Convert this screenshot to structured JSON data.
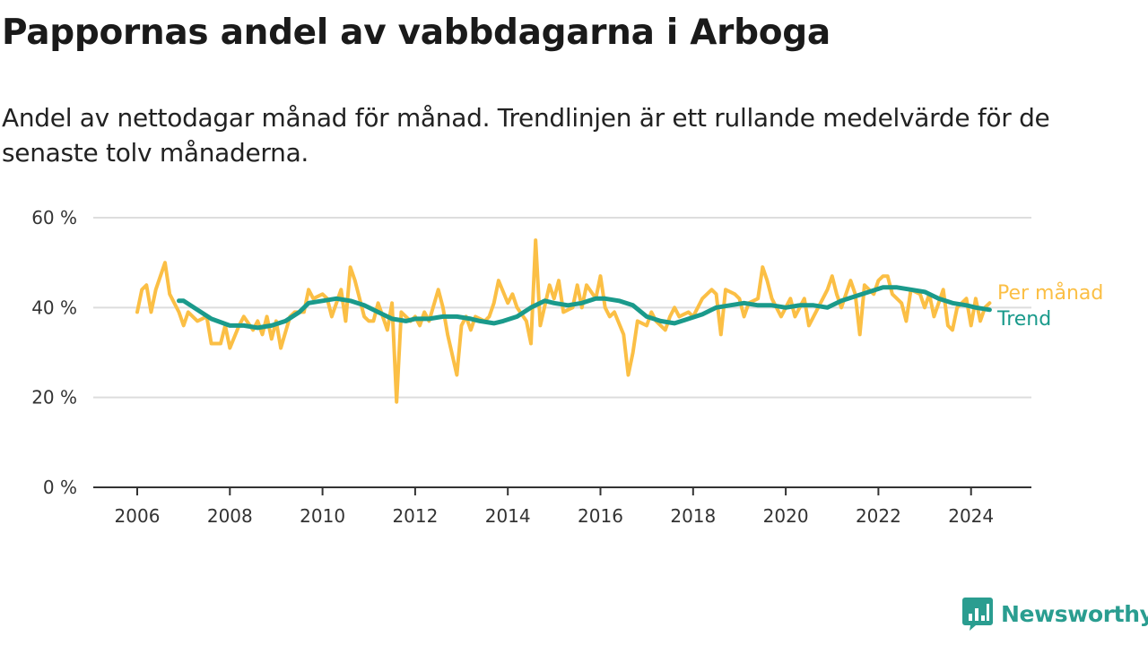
{
  "title": "Pappornas andel av vabbdagarna i Arboga",
  "subtitle": "Andel av nettodagar månad för månad. Trendlinjen är ett rullande medelvärde för de senaste tolv månaderna.",
  "brand": {
    "name": "Newsworthy",
    "color": "#2a9d90"
  },
  "colors": {
    "monthly": "#fbbf45",
    "trend": "#1a9a8b",
    "grid": "#dddddd",
    "axis": "#333333"
  },
  "chart_data": {
    "type": "line",
    "x_unit": "year (decimal)",
    "xlim": [
      2006,
      2024.4
    ],
    "ylim": [
      0,
      60
    ],
    "x_ticks": [
      "2006",
      "2008",
      "2010",
      "2012",
      "2014",
      "2016",
      "2018",
      "2020",
      "2022",
      "2024"
    ],
    "y_ticks": [
      "0 %",
      "20 %",
      "40 %",
      "60 %"
    ],
    "grid": true,
    "series": [
      {
        "name": "Per månad",
        "color": "#fbbf45",
        "points": [
          [
            2006.0,
            39
          ],
          [
            2006.1,
            44
          ],
          [
            2006.2,
            45
          ],
          [
            2006.3,
            39
          ],
          [
            2006.4,
            44
          ],
          [
            2006.6,
            50
          ],
          [
            2006.7,
            43
          ],
          [
            2006.9,
            39
          ],
          [
            2007.0,
            36
          ],
          [
            2007.1,
            39
          ],
          [
            2007.3,
            37
          ],
          [
            2007.5,
            38
          ],
          [
            2007.6,
            32
          ],
          [
            2007.8,
            32
          ],
          [
            2007.9,
            36
          ],
          [
            2008.0,
            31
          ],
          [
            2008.2,
            36
          ],
          [
            2008.3,
            38
          ],
          [
            2008.5,
            35
          ],
          [
            2008.6,
            37
          ],
          [
            2008.7,
            34
          ],
          [
            2008.8,
            38
          ],
          [
            2008.9,
            33
          ],
          [
            2009.0,
            37
          ],
          [
            2009.1,
            31
          ],
          [
            2009.3,
            38
          ],
          [
            2009.4,
            39
          ],
          [
            2009.6,
            39
          ],
          [
            2009.7,
            44
          ],
          [
            2009.8,
            42
          ],
          [
            2010.0,
            43
          ],
          [
            2010.1,
            42
          ],
          [
            2010.2,
            38
          ],
          [
            2010.4,
            44
          ],
          [
            2010.5,
            37
          ],
          [
            2010.6,
            49
          ],
          [
            2010.7,
            46
          ],
          [
            2010.9,
            38
          ],
          [
            2011.0,
            37
          ],
          [
            2011.1,
            37
          ],
          [
            2011.2,
            41
          ],
          [
            2011.4,
            35
          ],
          [
            2011.5,
            41
          ],
          [
            2011.6,
            19
          ],
          [
            2011.7,
            39
          ],
          [
            2011.9,
            37
          ],
          [
            2012.0,
            38
          ],
          [
            2012.1,
            36
          ],
          [
            2012.2,
            39
          ],
          [
            2012.3,
            37
          ],
          [
            2012.5,
            44
          ],
          [
            2012.6,
            40
          ],
          [
            2012.7,
            34
          ],
          [
            2012.9,
            25
          ],
          [
            2013.0,
            36
          ],
          [
            2013.1,
            38
          ],
          [
            2013.2,
            35
          ],
          [
            2013.3,
            38
          ],
          [
            2013.5,
            37
          ],
          [
            2013.6,
            38
          ],
          [
            2013.7,
            41
          ],
          [
            2013.8,
            46
          ],
          [
            2014.0,
            41
          ],
          [
            2014.1,
            43
          ],
          [
            2014.2,
            40
          ],
          [
            2014.4,
            37
          ],
          [
            2014.5,
            32
          ],
          [
            2014.6,
            55
          ],
          [
            2014.7,
            36
          ],
          [
            2014.9,
            45
          ],
          [
            2015.0,
            42
          ],
          [
            2015.1,
            46
          ],
          [
            2015.2,
            39
          ],
          [
            2015.4,
            40
          ],
          [
            2015.5,
            45
          ],
          [
            2015.6,
            40
          ],
          [
            2015.7,
            45
          ],
          [
            2015.9,
            42
          ],
          [
            2016.0,
            47
          ],
          [
            2016.1,
            40
          ],
          [
            2016.2,
            38
          ],
          [
            2016.3,
            39
          ],
          [
            2016.5,
            34
          ],
          [
            2016.6,
            25
          ],
          [
            2016.7,
            30
          ],
          [
            2016.8,
            37
          ],
          [
            2017.0,
            36
          ],
          [
            2017.1,
            39
          ],
          [
            2017.2,
            37
          ],
          [
            2017.4,
            35
          ],
          [
            2017.5,
            38
          ],
          [
            2017.6,
            40
          ],
          [
            2017.7,
            38
          ],
          [
            2017.9,
            39
          ],
          [
            2018.0,
            38
          ],
          [
            2018.1,
            40
          ],
          [
            2018.2,
            42
          ],
          [
            2018.4,
            44
          ],
          [
            2018.5,
            43
          ],
          [
            2018.6,
            34
          ],
          [
            2018.7,
            44
          ],
          [
            2018.9,
            43
          ],
          [
            2019.0,
            42
          ],
          [
            2019.1,
            38
          ],
          [
            2019.2,
            41
          ],
          [
            2019.4,
            42
          ],
          [
            2019.5,
            49
          ],
          [
            2019.6,
            46
          ],
          [
            2019.7,
            42
          ],
          [
            2019.9,
            38
          ],
          [
            2020.0,
            40
          ],
          [
            2020.1,
            42
          ],
          [
            2020.2,
            38
          ],
          [
            2020.4,
            42
          ],
          [
            2020.5,
            36
          ],
          [
            2020.6,
            38
          ],
          [
            2020.7,
            40
          ],
          [
            2020.9,
            44
          ],
          [
            2021.0,
            47
          ],
          [
            2021.1,
            43
          ],
          [
            2021.2,
            40
          ],
          [
            2021.4,
            46
          ],
          [
            2021.5,
            43
          ],
          [
            2021.6,
            34
          ],
          [
            2021.7,
            45
          ],
          [
            2021.9,
            43
          ],
          [
            2022.0,
            46
          ],
          [
            2022.1,
            47
          ],
          [
            2022.2,
            47
          ],
          [
            2022.3,
            43
          ],
          [
            2022.5,
            41
          ],
          [
            2022.6,
            37
          ],
          [
            2022.7,
            44
          ],
          [
            2022.9,
            43
          ],
          [
            2023.0,
            40
          ],
          [
            2023.1,
            43
          ],
          [
            2023.2,
            38
          ],
          [
            2023.4,
            44
          ],
          [
            2023.5,
            36
          ],
          [
            2023.6,
            35
          ],
          [
            2023.7,
            40
          ],
          [
            2023.9,
            42
          ],
          [
            2024.0,
            36
          ],
          [
            2024.1,
            42
          ],
          [
            2024.2,
            37
          ],
          [
            2024.3,
            40
          ],
          [
            2024.4,
            41
          ]
        ]
      },
      {
        "name": "Trend",
        "color": "#1a9a8b",
        "points": [
          [
            2006.9,
            41.5
          ],
          [
            2007.0,
            41.5
          ],
          [
            2007.3,
            39.5
          ],
          [
            2007.6,
            37.5
          ],
          [
            2008.0,
            36
          ],
          [
            2008.3,
            36
          ],
          [
            2008.6,
            35.5
          ],
          [
            2008.9,
            36
          ],
          [
            2009.2,
            37
          ],
          [
            2009.5,
            39
          ],
          [
            2009.7,
            41
          ],
          [
            2010.0,
            41.5
          ],
          [
            2010.3,
            42
          ],
          [
            2010.6,
            41.5
          ],
          [
            2010.9,
            40.5
          ],
          [
            2011.2,
            39
          ],
          [
            2011.5,
            37.5
          ],
          [
            2011.8,
            37
          ],
          [
            2012.0,
            37.5
          ],
          [
            2012.3,
            37.5
          ],
          [
            2012.6,
            38
          ],
          [
            2012.9,
            38
          ],
          [
            2013.2,
            37.5
          ],
          [
            2013.4,
            37
          ],
          [
            2013.7,
            36.5
          ],
          [
            2013.9,
            37
          ],
          [
            2014.2,
            38
          ],
          [
            2014.5,
            40
          ],
          [
            2014.8,
            41.5
          ],
          [
            2015.0,
            41
          ],
          [
            2015.3,
            40.5
          ],
          [
            2015.6,
            41
          ],
          [
            2015.9,
            42
          ],
          [
            2016.1,
            42
          ],
          [
            2016.4,
            41.5
          ],
          [
            2016.7,
            40.5
          ],
          [
            2017.0,
            38
          ],
          [
            2017.3,
            37
          ],
          [
            2017.6,
            36.5
          ],
          [
            2017.9,
            37.5
          ],
          [
            2018.2,
            38.5
          ],
          [
            2018.5,
            40
          ],
          [
            2018.8,
            40.5
          ],
          [
            2019.1,
            41
          ],
          [
            2019.4,
            40.5
          ],
          [
            2019.7,
            40.5
          ],
          [
            2020.0,
            40
          ],
          [
            2020.3,
            40.5
          ],
          [
            2020.6,
            40.5
          ],
          [
            2020.9,
            40
          ],
          [
            2021.2,
            41.5
          ],
          [
            2021.5,
            42.5
          ],
          [
            2021.8,
            43.5
          ],
          [
            2022.1,
            44.5
          ],
          [
            2022.4,
            44.5
          ],
          [
            2022.7,
            44
          ],
          [
            2023.0,
            43.5
          ],
          [
            2023.3,
            42
          ],
          [
            2023.6,
            41
          ],
          [
            2023.9,
            40.5
          ],
          [
            2024.1,
            40
          ],
          [
            2024.4,
            39.5
          ]
        ]
      }
    ]
  }
}
